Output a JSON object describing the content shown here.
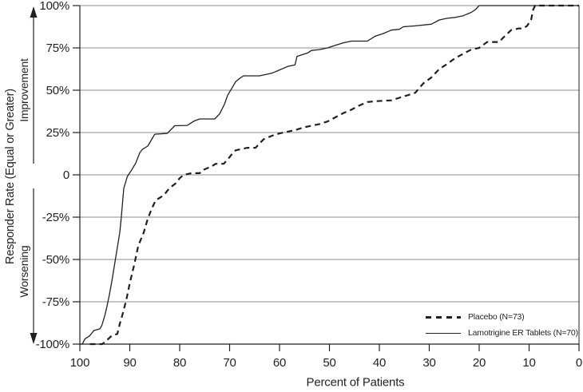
{
  "figure": {
    "y_axis_label": "Responder Rate (Equal or Greater)",
    "improvement_label": "Improvement",
    "worsening_label": "Worsening",
    "x_axis_label": "Percent of Patients"
  },
  "legend": {
    "placebo_label": "Placebo (N=73)",
    "lamotrigine_label": "Lamotrigine ER Tablets (N=70)"
  },
  "colors": {
    "line": "#231f20",
    "grid": "#8c8c8c",
    "text": "#231f20",
    "background": "#ffffff"
  },
  "chart_data": {
    "type": "line",
    "title": "",
    "xlabel": "Percent of Patients",
    "ylabel": "Responder Rate (Equal or Greater)",
    "x_axis_reversed": true,
    "xlim": [
      100,
      0
    ],
    "ylim": [
      -100,
      100
    ],
    "grid": "horizontal",
    "legend_position": "inside-bottom-right",
    "x_ticks": [
      100,
      90,
      80,
      70,
      60,
      50,
      40,
      30,
      20,
      10,
      0
    ],
    "y_ticks": [
      {
        "value": 100,
        "label": "100%"
      },
      {
        "value": 75,
        "label": "75%"
      },
      {
        "value": 50,
        "label": "50%"
      },
      {
        "value": 25,
        "label": "25%"
      },
      {
        "value": 0,
        "label": "0"
      },
      {
        "value": -25,
        "label": "-25%"
      },
      {
        "value": -50,
        "label": "-50%"
      },
      {
        "value": -75,
        "label": "-75%"
      },
      {
        "value": -100,
        "label": "-100%"
      }
    ],
    "series": [
      {
        "name": "Placebo (N=73)",
        "n": 73,
        "style": "dashed",
        "points": [
          [
            98,
            -100
          ],
          [
            95.5,
            -100
          ],
          [
            94.7,
            -98
          ],
          [
            93.6,
            -95
          ],
          [
            92.5,
            -94
          ],
          [
            92,
            -88
          ],
          [
            91.5,
            -83
          ],
          [
            90.7,
            -74
          ],
          [
            90,
            -64
          ],
          [
            89.1,
            -53
          ],
          [
            88.3,
            -42
          ],
          [
            87.2,
            -34
          ],
          [
            86.4,
            -26
          ],
          [
            85.6,
            -20
          ],
          [
            84.8,
            -15
          ],
          [
            83.7,
            -13
          ],
          [
            82.9,
            -11
          ],
          [
            82.1,
            -8
          ],
          [
            80.8,
            -5
          ],
          [
            80,
            -2
          ],
          [
            79.2,
            0
          ],
          [
            77.6,
            1
          ],
          [
            76,
            1
          ],
          [
            75.2,
            3
          ],
          [
            74.4,
            4
          ],
          [
            73.6,
            5
          ],
          [
            72.8,
            6.5
          ],
          [
            71.2,
            6.5
          ],
          [
            70.4,
            9
          ],
          [
            69.6,
            12
          ],
          [
            68.8,
            14.5
          ],
          [
            68,
            15
          ],
          [
            66.4,
            16
          ],
          [
            64.8,
            16
          ],
          [
            64,
            18.5
          ],
          [
            63.2,
            21
          ],
          [
            62.4,
            22
          ],
          [
            61.6,
            23
          ],
          [
            60,
            24.5
          ],
          [
            58.4,
            25.5
          ],
          [
            56.8,
            26.5
          ],
          [
            55.2,
            28
          ],
          [
            53.6,
            29
          ],
          [
            52,
            30
          ],
          [
            50.4,
            31.5
          ],
          [
            48.8,
            34
          ],
          [
            47.2,
            36.5
          ],
          [
            45.6,
            38.5
          ],
          [
            44,
            41
          ],
          [
            42.4,
            43
          ],
          [
            40.8,
            43.5
          ],
          [
            37.6,
            44
          ],
          [
            36,
            45.5
          ],
          [
            34.4,
            47
          ],
          [
            32.8,
            48.5
          ],
          [
            31.2,
            54
          ],
          [
            29.6,
            57.5
          ],
          [
            28,
            62.5
          ],
          [
            26.4,
            65.5
          ],
          [
            24.8,
            69
          ],
          [
            23.2,
            71.5
          ],
          [
            21.6,
            74
          ],
          [
            20,
            75
          ],
          [
            18.4,
            78.5
          ],
          [
            16,
            78.5
          ],
          [
            15.2,
            81
          ],
          [
            13.6,
            85.5
          ],
          [
            12,
            86.5
          ],
          [
            11.2,
            86.5
          ],
          [
            10.4,
            88
          ],
          [
            9.6,
            91.5
          ],
          [
            9.2,
            97.5
          ],
          [
            8.8,
            100
          ],
          [
            0,
            100
          ]
        ]
      },
      {
        "name": "Lamotrigine ER Tablets (N=70)",
        "n": 70,
        "style": "solid",
        "points": [
          [
            100,
            -100
          ],
          [
            99.5,
            -100
          ],
          [
            99,
            -97
          ],
          [
            98,
            -95
          ],
          [
            97.2,
            -92
          ],
          [
            96,
            -91
          ],
          [
            95.6,
            -89
          ],
          [
            95,
            -83
          ],
          [
            94.6,
            -78
          ],
          [
            94.1,
            -71
          ],
          [
            93.6,
            -63
          ],
          [
            93,
            -52
          ],
          [
            92.5,
            -43
          ],
          [
            92,
            -34
          ],
          [
            91.7,
            -25
          ],
          [
            91.4,
            -15
          ],
          [
            91.2,
            -8
          ],
          [
            90.5,
            -1
          ],
          [
            89.6,
            3
          ],
          [
            88.8,
            7
          ],
          [
            88,
            13
          ],
          [
            87.5,
            15
          ],
          [
            86.4,
            17
          ],
          [
            85.6,
            21
          ],
          [
            85,
            24
          ],
          [
            82.5,
            24.5
          ],
          [
            81,
            29
          ],
          [
            78.5,
            29.2
          ],
          [
            77,
            32
          ],
          [
            76,
            33
          ],
          [
            73,
            33
          ],
          [
            72,
            36
          ],
          [
            71,
            42
          ],
          [
            70.4,
            47
          ],
          [
            69.6,
            51
          ],
          [
            68.8,
            55
          ],
          [
            68,
            57
          ],
          [
            67.2,
            58.5
          ],
          [
            64,
            58.5
          ],
          [
            61.6,
            60
          ],
          [
            60,
            62
          ],
          [
            58.4,
            64
          ],
          [
            56.9,
            65
          ],
          [
            56.5,
            70
          ],
          [
            54.4,
            72
          ],
          [
            53.6,
            73.5
          ],
          [
            52,
            74
          ],
          [
            50.4,
            75
          ],
          [
            48.8,
            76.5
          ],
          [
            47.2,
            78
          ],
          [
            45.6,
            79
          ],
          [
            42.4,
            79
          ],
          [
            40.8,
            82
          ],
          [
            39.2,
            83.5
          ],
          [
            37.6,
            85.5
          ],
          [
            36,
            86
          ],
          [
            35.2,
            87.5
          ],
          [
            32.8,
            88
          ],
          [
            29.6,
            89
          ],
          [
            28,
            91.5
          ],
          [
            26.4,
            92.5
          ],
          [
            24.8,
            93
          ],
          [
            23.2,
            94
          ],
          [
            21.6,
            96
          ],
          [
            20.8,
            97.5
          ],
          [
            20,
            100
          ],
          [
            0,
            100
          ]
        ]
      }
    ]
  }
}
